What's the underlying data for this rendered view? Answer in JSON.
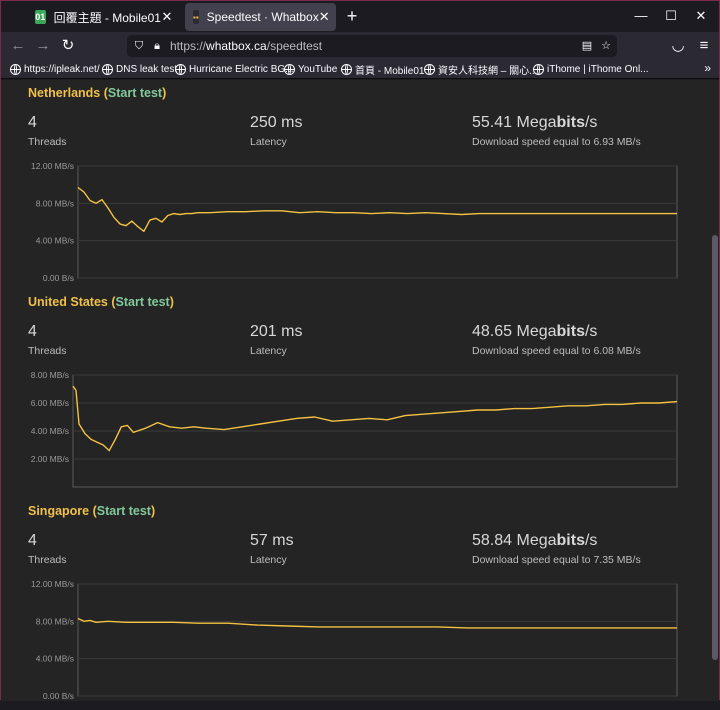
{
  "browser": {
    "tabs": [
      {
        "title": "回覆主題 - Mobile01",
        "active": false,
        "favicon": "mobile01-favicon"
      },
      {
        "title": "Speedtest · Whatbox",
        "active": true,
        "favicon": "whatbox-favicon"
      }
    ],
    "url": {
      "scheme": "https://",
      "host": "whatbox.ca",
      "path": "/speedtest"
    },
    "bookmarks": [
      {
        "label": "https://ipleak.net/"
      },
      {
        "label": "DNS leak test"
      },
      {
        "label": "Hurricane Electric BG..."
      },
      {
        "label": "YouTube"
      },
      {
        "label": "首頁 - Mobile01"
      },
      {
        "label": "資安人科技網 – 關心..."
      },
      {
        "label": "iThome | iThome Onl..."
      }
    ],
    "icons": {
      "back": "arrow-left-icon",
      "forward": "arrow-right-icon",
      "reload": "reload-icon",
      "shield": "shield-icon",
      "lock": "lock-icon",
      "reader": "reader-view-icon",
      "star": "star-icon",
      "pocket": "pocket-icon",
      "menu": "hamburger-menu-icon"
    }
  },
  "colors": {
    "accent": "#f0c04a",
    "link": "#82c99b",
    "line": "#f5c242",
    "background": "#242424"
  },
  "common": {
    "start_test": "Start test",
    "threads_label": "Threads",
    "latency_label": "Latency",
    "speed_prefix": "Download speed equal to"
  },
  "sections": [
    {
      "name": "Netherlands",
      "threads": "4",
      "latency": "250 ms",
      "speed_value": "55.41",
      "speed_unit_a": "Mega",
      "speed_unit_b": "bits",
      "speed_unit_c": "/s",
      "speed_equiv": "6.93 MB/s"
    },
    {
      "name": "United States",
      "threads": "4",
      "latency": "201 ms",
      "speed_value": "48.65",
      "speed_unit_a": "Mega",
      "speed_unit_b": "bits",
      "speed_unit_c": "/s",
      "speed_equiv": "6.08 MB/s"
    },
    {
      "name": "Singapore",
      "threads": "4",
      "latency": "57 ms",
      "speed_value": "58.84",
      "speed_unit_a": "Mega",
      "speed_unit_b": "bits",
      "speed_unit_c": "/s",
      "speed_equiv": "7.35 MB/s"
    }
  ],
  "chart_data": [
    {
      "type": "line",
      "title": "",
      "xlabel": "",
      "ylabel": "",
      "ylim": [
        0,
        12
      ],
      "yticks": [
        "0.00 B/s",
        "4.00 MB/s",
        "8.00 MB/s",
        "12.00 MB/s"
      ],
      "ytick_values": [
        0,
        4,
        8,
        12
      ],
      "grid": true,
      "series": [
        {
          "x": [
            0,
            1,
            2,
            3,
            4,
            5,
            6,
            7,
            8,
            9,
            10,
            11,
            12,
            13,
            14,
            15,
            16,
            17,
            18,
            19,
            20,
            22,
            25,
            28,
            31,
            34,
            37,
            40,
            43,
            46,
            49,
            52,
            55,
            58,
            61,
            64,
            67,
            70,
            73,
            76,
            79,
            82,
            85,
            88,
            91,
            94,
            97,
            100
          ],
          "values": [
            9.7,
            9.2,
            8.3,
            8.0,
            8.4,
            7.5,
            6.5,
            5.8,
            5.6,
            6.1,
            5.5,
            5.0,
            6.2,
            6.4,
            6.0,
            6.7,
            6.9,
            6.8,
            6.9,
            6.9,
            7.0,
            7.0,
            7.1,
            7.1,
            7.2,
            7.2,
            7.0,
            7.1,
            7.0,
            7.0,
            6.9,
            7.0,
            6.9,
            7.0,
            6.9,
            6.8,
            6.9,
            6.9,
            6.9,
            6.9,
            6.9,
            6.9,
            6.9,
            6.9,
            6.9,
            6.9,
            6.9,
            6.9
          ]
        }
      ]
    },
    {
      "type": "line",
      "title": "",
      "xlabel": "",
      "ylabel": "",
      "ylim": [
        0,
        8
      ],
      "yticks": [
        "2.00 MB/s",
        "4.00 MB/s",
        "6.00 MB/s",
        "8.00 MB/s"
      ],
      "ytick_values": [
        2,
        4,
        6,
        8
      ],
      "grid": true,
      "series": [
        {
          "x": [
            0,
            0.5,
            1,
            2,
            3,
            4,
            5,
            6,
            7,
            8,
            9,
            10,
            12,
            14,
            16,
            18,
            20,
            22,
            25,
            28,
            31,
            34,
            37,
            40,
            43,
            46,
            49,
            52,
            55,
            58,
            61,
            64,
            67,
            70,
            73,
            76,
            79,
            82,
            85,
            88,
            91,
            94,
            97,
            100
          ],
          "values": [
            7.2,
            6.9,
            4.5,
            3.8,
            3.4,
            3.2,
            3.0,
            2.6,
            3.4,
            4.3,
            4.4,
            3.9,
            4.2,
            4.6,
            4.3,
            4.2,
            4.3,
            4.2,
            4.1,
            4.3,
            4.5,
            4.7,
            4.9,
            5.0,
            4.7,
            4.8,
            4.9,
            4.8,
            5.1,
            5.2,
            5.3,
            5.4,
            5.5,
            5.5,
            5.6,
            5.6,
            5.7,
            5.8,
            5.8,
            5.9,
            5.9,
            6.0,
            6.0,
            6.1
          ]
        }
      ]
    },
    {
      "type": "line",
      "title": "",
      "xlabel": "",
      "ylabel": "",
      "ylim": [
        0,
        12
      ],
      "yticks": [
        "0.00 B/s",
        "4.00 MB/s",
        "8.00 MB/s",
        "12.00 MB/s"
      ],
      "ytick_values": [
        0,
        4,
        8,
        12
      ],
      "grid": true,
      "series": [
        {
          "x": [
            0,
            1,
            2,
            3,
            5,
            8,
            12,
            16,
            20,
            25,
            30,
            35,
            40,
            45,
            50,
            55,
            60,
            65,
            70,
            75,
            80,
            85,
            90,
            95,
            100
          ],
          "values": [
            8.3,
            8.0,
            8.1,
            7.9,
            8.0,
            7.9,
            7.9,
            7.9,
            7.8,
            7.8,
            7.6,
            7.5,
            7.4,
            7.4,
            7.4,
            7.4,
            7.4,
            7.3,
            7.3,
            7.3,
            7.3,
            7.3,
            7.3,
            7.3,
            7.3
          ]
        }
      ]
    }
  ]
}
